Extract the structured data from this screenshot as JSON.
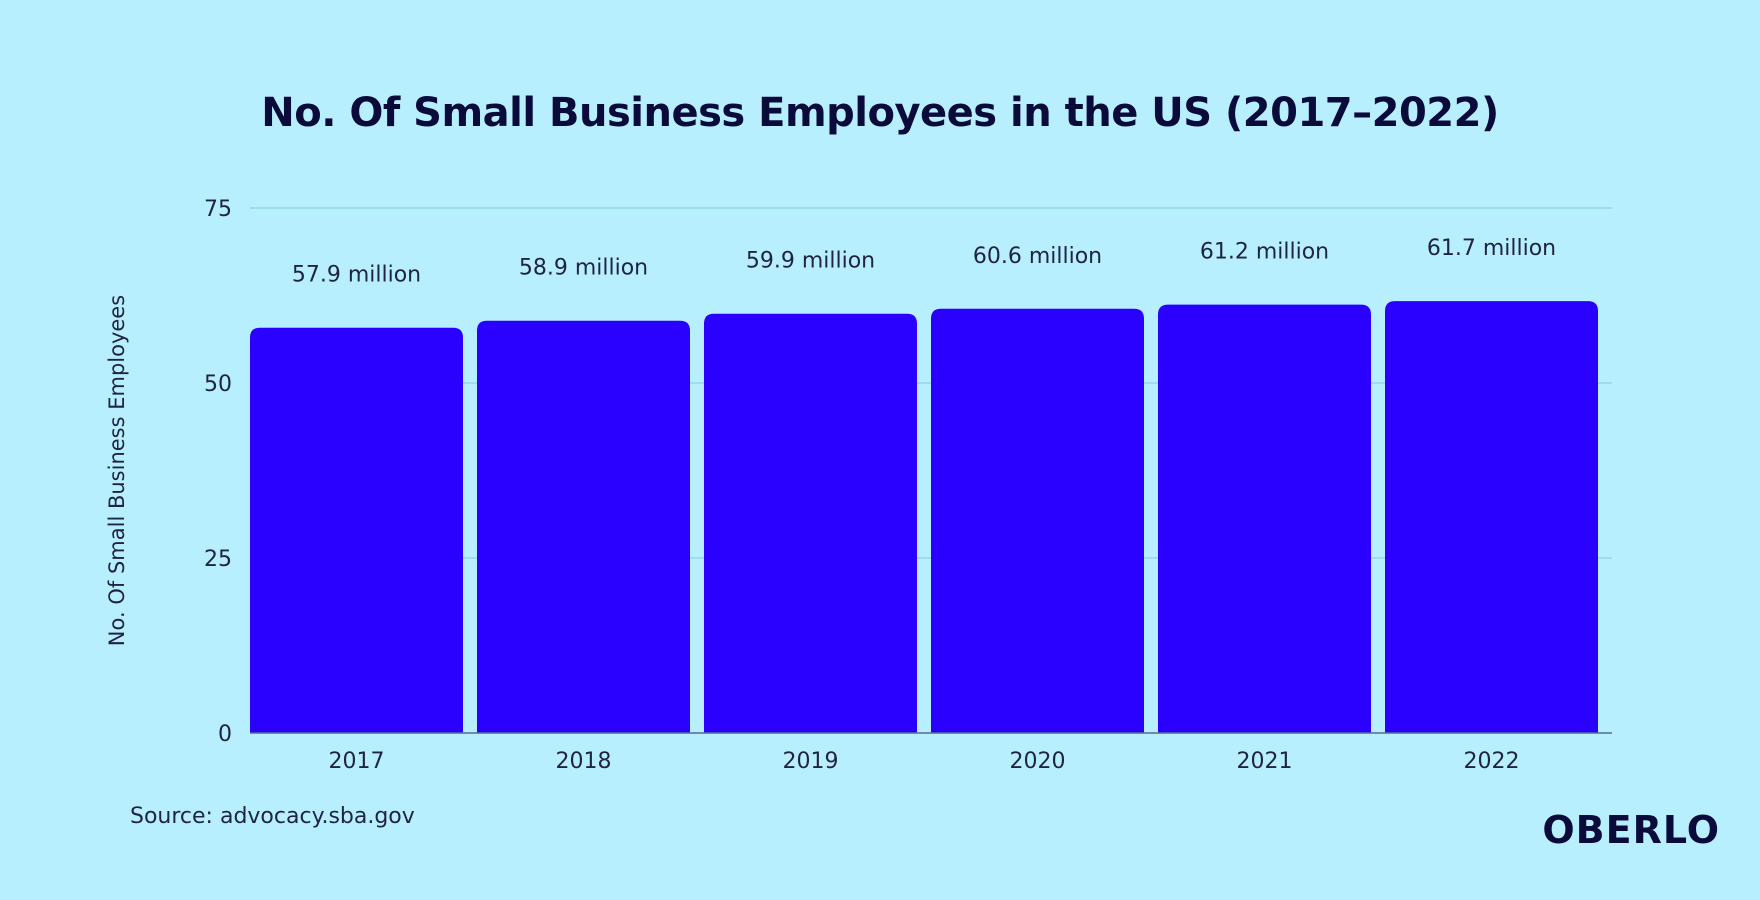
{
  "chart_data": {
    "type": "bar",
    "title": "No. Of Small Business Employees in the US (2017–2022)",
    "xlabel": "",
    "ylabel": "No. Of Small Business Employees",
    "categories": [
      "2017",
      "2018",
      "2019",
      "2020",
      "2021",
      "2022"
    ],
    "values": [
      57.9,
      58.9,
      59.9,
      60.6,
      61.2,
      61.7
    ],
    "data_labels": [
      "57.9 million",
      "58.9 million",
      "59.9 million",
      "60.6 million",
      "61.2 million",
      "61.7 million"
    ],
    "yticks": [
      "0",
      "25",
      "50",
      "75"
    ],
    "ylim": [
      0,
      75
    ],
    "grid": true,
    "bar_color": "#2a00ff",
    "background_color": "#b8efff"
  },
  "source": "Source: advocacy.sba.gov",
  "brand": "OBERLO"
}
